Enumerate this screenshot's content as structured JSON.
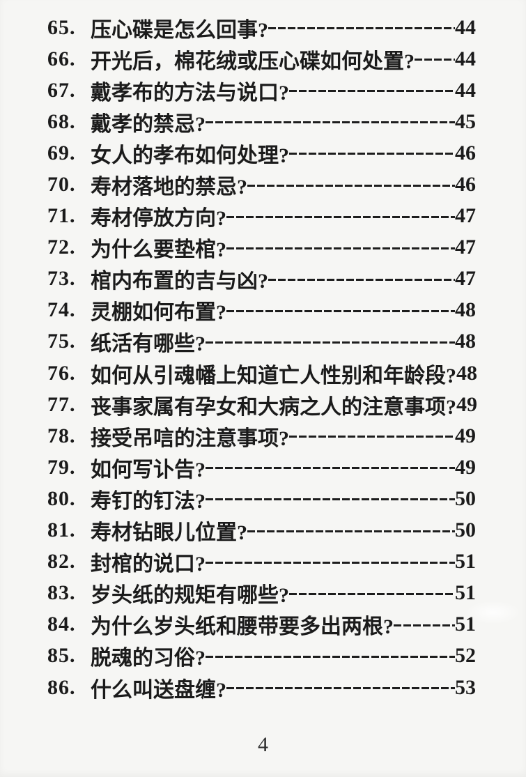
{
  "document": {
    "kind": "table-of-contents-page",
    "footer": {
      "page_number": "4"
    },
    "colors": {
      "text": "#1b1b1b",
      "background": "#f6f6f4"
    },
    "toc_entries": [
      {
        "num": "65.",
        "title": "压心碟是怎么回事?",
        "page": "44"
      },
      {
        "num": "66.",
        "title": "开光后，棉花绒或压心碟如何处置?",
        "page": "44"
      },
      {
        "num": "67.",
        "title": "戴孝布的方法与说口?",
        "page": "44"
      },
      {
        "num": "68.",
        "title": "戴孝的禁忌?",
        "page": "45"
      },
      {
        "num": "69.",
        "title": "女人的孝布如何处理?",
        "page": "46"
      },
      {
        "num": "70.",
        "title": "寿材落地的禁忌?",
        "page": "46"
      },
      {
        "num": "71.",
        "title": "寿材停放方向?",
        "page": "47"
      },
      {
        "num": "72.",
        "title": "为什么要垫棺?",
        "page": "47"
      },
      {
        "num": "73.",
        "title": "棺内布置的吉与凶?",
        "page": "47"
      },
      {
        "num": "74.",
        "title": "灵棚如何布置?",
        "page": "48"
      },
      {
        "num": "75.",
        "title": "纸活有哪些?",
        "page": "48"
      },
      {
        "num": "76.",
        "title": "如何从引魂幡上知道亡人性别和年龄段?",
        "page": "48"
      },
      {
        "num": "77.",
        "title": "丧事家属有孕女和大病之人的注意事项?",
        "page": "49"
      },
      {
        "num": "78.",
        "title": "接受吊唁的注意事项?",
        "page": "49"
      },
      {
        "num": "79.",
        "title": "如何写讣告?",
        "page": "49"
      },
      {
        "num": "80.",
        "title": "寿钉的钉法?",
        "page": "50"
      },
      {
        "num": "81.",
        "title": "寿材钻眼儿位置?",
        "page": "50"
      },
      {
        "num": "82.",
        "title": "封棺的说口?",
        "page": "51"
      },
      {
        "num": "83.",
        "title": "岁头纸的规矩有哪些?",
        "page": "51"
      },
      {
        "num": "84.",
        "title": "为什么岁头纸和腰带要多出两根?",
        "page": "51"
      },
      {
        "num": "85.",
        "title": "脱魂的习俗?",
        "page": "52"
      },
      {
        "num": "86.",
        "title": "什么叫送盘缠?",
        "page": "53"
      }
    ]
  }
}
